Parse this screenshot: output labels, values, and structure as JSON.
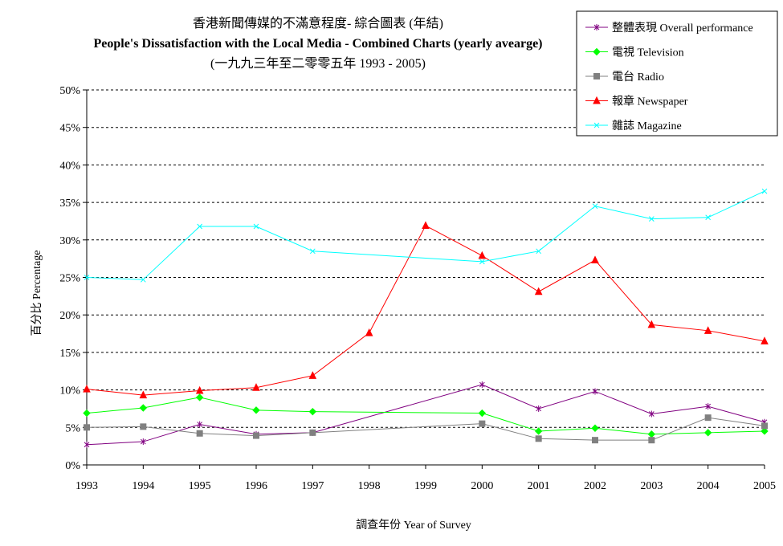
{
  "chart_data": {
    "type": "line",
    "title_lines": [
      "香港新聞傳媒的不滿意程度- 綜合圖表 (年結)",
      "People's Dissatisfaction with the Local Media - Combined Charts (yearly avearge)",
      "(一九九三年至二零零五年 1993 - 2005)"
    ],
    "xlabel": "調查年份 Year of Survey",
    "ylabel": "百分比 Percentage",
    "x": [
      "1993",
      "1994",
      "1995",
      "1996",
      "1997",
      "1998",
      "1999",
      "2000",
      "2001",
      "2002",
      "2003",
      "2004",
      "2005"
    ],
    "ylim": [
      0,
      50
    ],
    "y_ticks": [
      "0%",
      "5%",
      "10%",
      "15%",
      "20%",
      "25%",
      "30%",
      "35%",
      "40%",
      "45%",
      "50%"
    ],
    "grid": "horizontal dashed",
    "legend_position": "top-right",
    "series": [
      {
        "name": "整體表現 Overall performance",
        "color": "#800080",
        "marker": "star",
        "values": [
          2.7,
          3.1,
          5.4,
          4.1,
          4.3,
          null,
          null,
          10.7,
          7.5,
          9.8,
          6.8,
          7.8,
          5.7
        ]
      },
      {
        "name": "電視 Television",
        "color": "#00ff00",
        "marker": "diamond",
        "values": [
          6.9,
          7.6,
          9.0,
          7.3,
          7.1,
          null,
          null,
          6.9,
          4.5,
          4.9,
          4.1,
          4.3,
          4.5
        ]
      },
      {
        "name": "電台 Radio",
        "color": "#808080",
        "marker": "square",
        "values": [
          5.0,
          5.1,
          4.2,
          3.9,
          4.3,
          null,
          null,
          5.5,
          3.5,
          3.3,
          3.3,
          6.3,
          5.2
        ]
      },
      {
        "name": "報章 Newspaper",
        "color": "#ff0000",
        "marker": "triangle",
        "values": [
          10.1,
          9.3,
          9.9,
          10.3,
          11.9,
          17.6,
          31.9,
          27.9,
          23.1,
          27.3,
          18.7,
          17.9,
          16.5
        ]
      },
      {
        "name": "雜誌 Magazine",
        "color": "#00ffff",
        "marker": "x",
        "values": [
          25.0,
          24.7,
          31.8,
          31.8,
          28.5,
          null,
          null,
          27.1,
          28.5,
          34.5,
          32.8,
          33.0,
          36.5
        ]
      }
    ]
  }
}
